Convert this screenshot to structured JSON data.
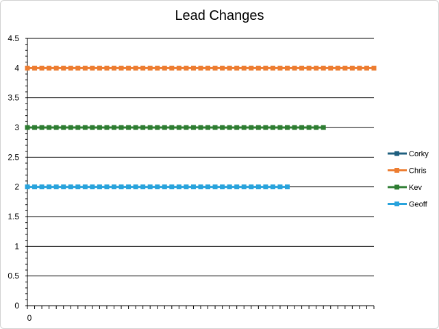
{
  "chart_data": {
    "type": "line",
    "title": "Lead Changes",
    "xlabel": "",
    "ylabel": "",
    "ylim": [
      0,
      4.5
    ],
    "yticks": [
      "0",
      "0.5",
      "1",
      "1.5",
      "2",
      "2.5",
      "3",
      "3.5",
      "4",
      "4.5"
    ],
    "xticks": [
      "0"
    ],
    "grid": "horizontal",
    "legend": "right",
    "series": [
      {
        "name": "Corky",
        "color": "#1f5f7f",
        "values": []
      },
      {
        "name": "Chris",
        "color": "#ed7d31",
        "values": [
          4,
          4,
          4,
          4,
          4,
          4,
          4,
          4,
          4,
          4,
          4,
          4,
          4,
          4,
          4,
          4,
          4,
          4,
          4,
          4,
          4,
          4,
          4,
          4,
          4,
          4,
          4,
          4,
          4,
          4,
          4,
          4,
          4,
          4,
          4,
          4,
          4,
          4,
          4,
          4,
          4,
          4,
          4,
          4,
          4,
          4,
          4,
          4,
          4
        ]
      },
      {
        "name": "Kev",
        "color": "#2e7d32",
        "values": [
          3,
          3,
          3,
          3,
          3,
          3,
          3,
          3,
          3,
          3,
          3,
          3,
          3,
          3,
          3,
          3,
          3,
          3,
          3,
          3,
          3,
          3,
          3,
          3,
          3,
          3,
          3,
          3,
          3,
          3,
          3,
          3,
          3,
          3,
          3,
          3,
          3,
          3,
          3,
          3,
          3,
          3
        ]
      },
      {
        "name": "Geoff",
        "color": "#29a3dc",
        "values": [
          2,
          2,
          2,
          2,
          2,
          2,
          2,
          2,
          2,
          2,
          2,
          2,
          2,
          2,
          2,
          2,
          2,
          2,
          2,
          2,
          2,
          2,
          2,
          2,
          2,
          2,
          2,
          2,
          2,
          2,
          2,
          2,
          2,
          2,
          2,
          2,
          2
        ]
      }
    ]
  }
}
